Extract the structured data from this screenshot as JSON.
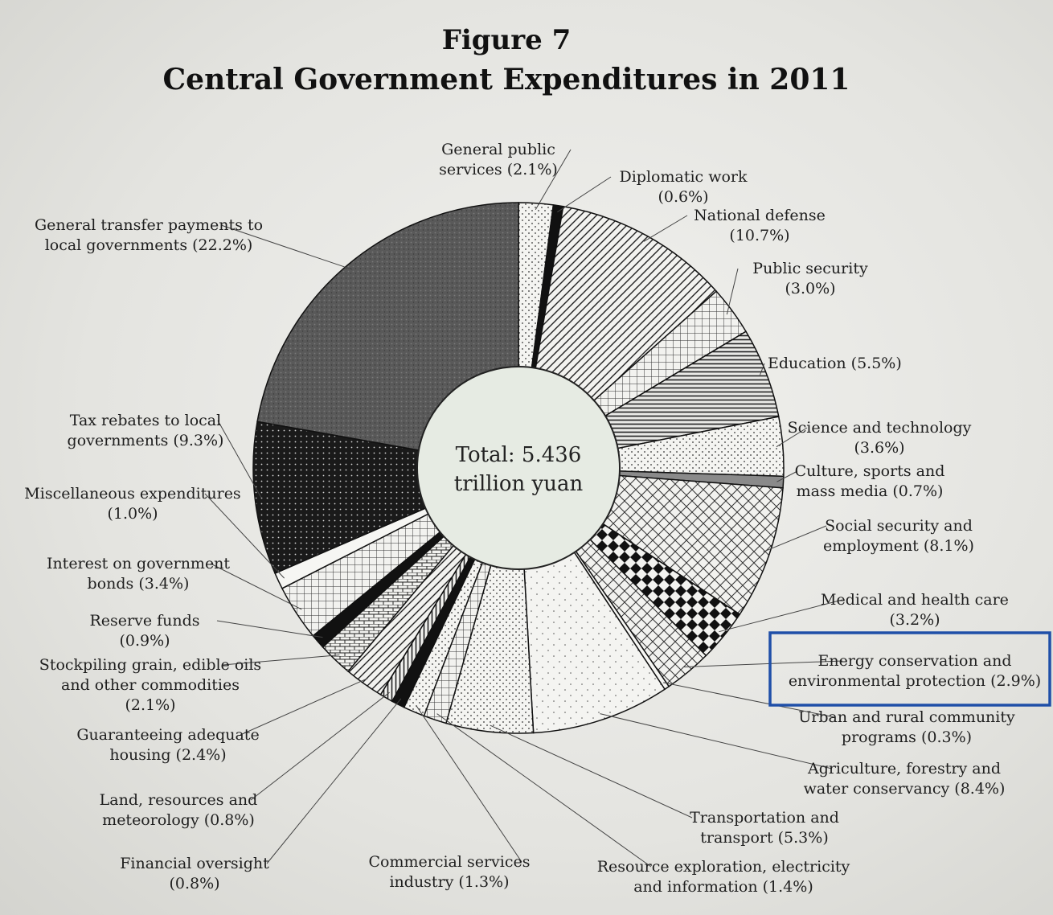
{
  "figure_label": "Figure 7",
  "title": "Central Government Expenditures in 2011",
  "center_text_line1": "Total: 5.436",
  "center_text_line2": "trillion yuan",
  "highlight_color": "#1f4fa8",
  "chart_data": {
    "type": "pie",
    "title": "Central Government Expenditures in 2011",
    "total": "5.436 trillion yuan",
    "slices": [
      {
        "label": "General public services",
        "value": 2.1,
        "pattern": "dots"
      },
      {
        "label": "Diplomatic work",
        "value": 0.6,
        "pattern": "black"
      },
      {
        "label": "National defense",
        "value": 10.7,
        "pattern": "diag"
      },
      {
        "label": "Public security",
        "value": 3.0,
        "pattern": "grid"
      },
      {
        "label": "Education",
        "value": 5.5,
        "pattern": "hlines"
      },
      {
        "label": "Science and technology",
        "value": 3.6,
        "pattern": "dots"
      },
      {
        "label": "Culture, sports and mass media",
        "value": 0.7,
        "pattern": "gray"
      },
      {
        "label": "Social security and employment",
        "value": 8.1,
        "pattern": "crosshatch"
      },
      {
        "label": "Medical and health care",
        "value": 3.2,
        "pattern": "checker"
      },
      {
        "label": "Energy conservation and environmental protection",
        "value": 2.9,
        "pattern": "crosshatch"
      },
      {
        "label": "Urban and rural community programs",
        "value": 0.3,
        "pattern": "white"
      },
      {
        "label": "Agriculture, forestry and water conservancy",
        "value": 8.4,
        "pattern": "sparse"
      },
      {
        "label": "Transportation and transport",
        "value": 5.3,
        "pattern": "dots"
      },
      {
        "label": "Resource exploration, electricity and information",
        "value": 1.4,
        "pattern": "grid"
      },
      {
        "label": "Commercial services industry",
        "value": 1.3,
        "pattern": "dots"
      },
      {
        "label": "Financial oversight",
        "value": 0.8,
        "pattern": "black"
      },
      {
        "label": "Land, resources and meteorology",
        "value": 0.8,
        "pattern": "vlines"
      },
      {
        "label": "Guaranteeing adequate housing",
        "value": 2.4,
        "pattern": "diag"
      },
      {
        "label": "Stockpiling grain, edible oils and other commodities",
        "value": 2.1,
        "pattern": "bricks"
      },
      {
        "label": "Reserve funds",
        "value": 0.9,
        "pattern": "black"
      },
      {
        "label": "Interest on government bonds",
        "value": 3.4,
        "pattern": "grid"
      },
      {
        "label": "Miscellaneous expenditures",
        "value": 1.0,
        "pattern": "white"
      },
      {
        "label": "Tax rebates to local governments",
        "value": 9.3,
        "pattern": "darkdots"
      },
      {
        "label": "General transfer payments to local governments",
        "value": 22.2,
        "pattern": "darkgray"
      }
    ]
  },
  "labels": [
    {
      "lines": [
        "General public",
        "services (2.1%)"
      ]
    },
    {
      "lines": [
        "Diplomatic work",
        "(0.6%)"
      ]
    },
    {
      "lines": [
        "National defense",
        "(10.7%)"
      ]
    },
    {
      "lines": [
        "Public security",
        "(3.0%)"
      ]
    },
    {
      "lines": [
        "Education (5.5%)"
      ]
    },
    {
      "lines": [
        "Science and technology",
        "(3.6%)"
      ]
    },
    {
      "lines": [
        "Culture, sports and",
        "mass media (0.7%)"
      ]
    },
    {
      "lines": [
        "Social security and",
        "employment (8.1%)"
      ]
    },
    {
      "lines": [
        "Medical and health care",
        "(3.2%)"
      ]
    },
    {
      "lines": [
        "Energy conservation and",
        "environmental protection (2.9%)"
      ]
    },
    {
      "lines": [
        "Urban and rural community",
        "programs (0.3%)"
      ]
    },
    {
      "lines": [
        "Agriculture, forestry and",
        "water conservancy (8.4%)"
      ]
    },
    {
      "lines": [
        "Transportation and",
        "transport (5.3%)"
      ]
    },
    {
      "lines": [
        "Resource exploration, electricity",
        "and information (1.4%)"
      ]
    },
    {
      "lines": [
        "Commercial services",
        "industry (1.3%)"
      ]
    },
    {
      "lines": [
        "Financial oversight",
        "(0.8%)"
      ]
    },
    {
      "lines": [
        "Land, resources and",
        "meteorology (0.8%)"
      ]
    },
    {
      "lines": [
        "Guaranteeing adequate",
        "housing (2.4%)"
      ]
    },
    {
      "lines": [
        "Stockpiling grain, edible oils",
        "and other commodities",
        "(2.1%)"
      ]
    },
    {
      "lines": [
        "Reserve funds",
        "(0.9%)"
      ]
    },
    {
      "lines": [
        "Interest on government",
        "bonds (3.4%)"
      ]
    },
    {
      "lines": [
        "Miscellaneous expenditures",
        "(1.0%)"
      ]
    },
    {
      "lines": [
        "Tax rebates to local",
        "governments (9.3%)"
      ]
    },
    {
      "lines": [
        "General transfer payments to",
        "local governments (22.2%)"
      ]
    }
  ]
}
